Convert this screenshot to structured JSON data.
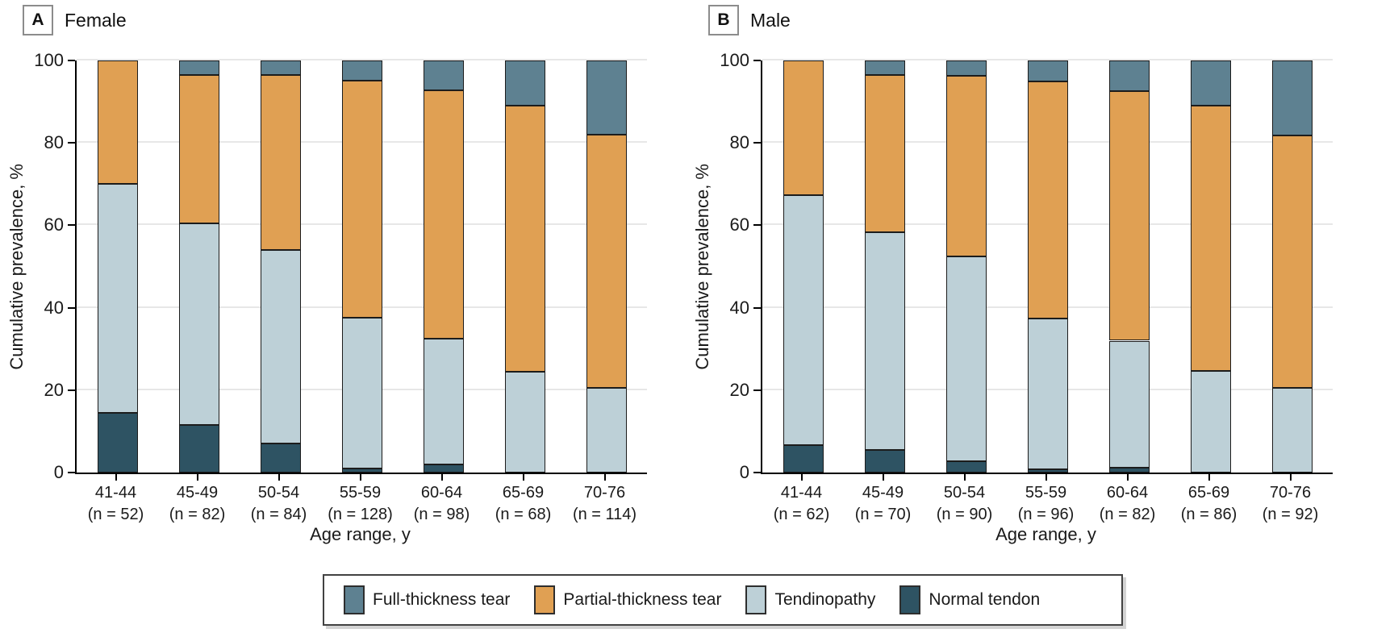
{
  "figure": {
    "panel_a": {
      "letter": "A",
      "title": "Female"
    },
    "panel_b": {
      "letter": "B",
      "title": "Male"
    }
  },
  "legend": {
    "items": [
      {
        "label": "Full-thickness tear",
        "color": "#5E8191"
      },
      {
        "label": "Partial-thickness tear",
        "color": "#E0A053"
      },
      {
        "label": "Tendinopathy",
        "color": "#BDD0D7"
      },
      {
        "label": "Normal tendon",
        "color": "#2E5363"
      }
    ]
  },
  "colors": {
    "full_thickness_tear": "#5E8191",
    "partial_thickness_tear": "#E0A053",
    "tendinopathy": "#BDD0D7",
    "normal_tendon": "#2E5363",
    "gridline": "#e7e7e7",
    "axis": "#000000",
    "segment_outline": "#1c1c1c"
  },
  "chart_data": [
    {
      "type": "bar",
      "stacked": true,
      "panel": "A",
      "title": "Female",
      "xlabel": "Age range, y",
      "ylabel": "Cumulative prevalence, %",
      "ylim": [
        0,
        100
      ],
      "yticks": [
        0,
        20,
        40,
        60,
        80,
        100
      ],
      "grid": true,
      "legend_position": "bottom",
      "categories": [
        "41-44",
        "45-49",
        "50-54",
        "55-59",
        "60-64",
        "65-69",
        "70-76"
      ],
      "category_n": [
        "(n = 52)",
        "(n = 82)",
        "(n = 84)",
        "(n = 128)",
        "(n = 98)",
        "(n = 68)",
        "(n = 114)"
      ],
      "series": [
        {
          "name": "Normal tendon",
          "color": "#2E5363",
          "values": [
            14.5,
            11.5,
            7.0,
            1.0,
            2.0,
            0,
            0
          ]
        },
        {
          "name": "Tendinopathy",
          "color": "#BDD0D7",
          "values": [
            55.5,
            49.0,
            47.0,
            36.5,
            30.5,
            24.5,
            20.5
          ]
        },
        {
          "name": "Partial-thickness tear",
          "color": "#E0A053",
          "values": [
            30.0,
            36.0,
            42.5,
            57.7,
            60.2,
            64.5,
            61.5
          ]
        },
        {
          "name": "Full-thickness tear",
          "color": "#5E8191",
          "values": [
            0,
            3.5,
            3.5,
            4.8,
            7.3,
            11.0,
            18.0
          ]
        }
      ]
    },
    {
      "type": "bar",
      "stacked": true,
      "panel": "B",
      "title": "Male",
      "xlabel": "Age range, y",
      "ylabel": "Cumulative prevalence, %",
      "ylim": [
        0,
        100
      ],
      "yticks": [
        0,
        20,
        40,
        60,
        80,
        100
      ],
      "grid": true,
      "legend_position": "bottom",
      "categories": [
        "41-44",
        "45-49",
        "50-54",
        "55-59",
        "60-64",
        "65-69",
        "70-76"
      ],
      "category_n": [
        "(n = 62)",
        "(n = 70)",
        "(n = 90)",
        "(n = 96)",
        "(n = 82)",
        "(n = 86)",
        "(n = 92)"
      ],
      "series": [
        {
          "name": "Normal tendon",
          "color": "#2E5363",
          "values": [
            6.7,
            5.5,
            2.8,
            0.7,
            1.1,
            0,
            0
          ]
        },
        {
          "name": "Tendinopathy",
          "color": "#BDD0D7",
          "values": [
            60.6,
            52.8,
            49.7,
            36.6,
            30.9,
            24.7,
            20.6
          ]
        },
        {
          "name": "Partial-thickness tear",
          "color": "#E0A053",
          "values": [
            32.7,
            38.1,
            43.7,
            57.7,
            60.5,
            64.3,
            61.2
          ]
        },
        {
          "name": "Full-thickness tear",
          "color": "#5E8191",
          "values": [
            0,
            3.6,
            3.8,
            5.0,
            7.5,
            11.0,
            18.2
          ]
        }
      ]
    }
  ]
}
